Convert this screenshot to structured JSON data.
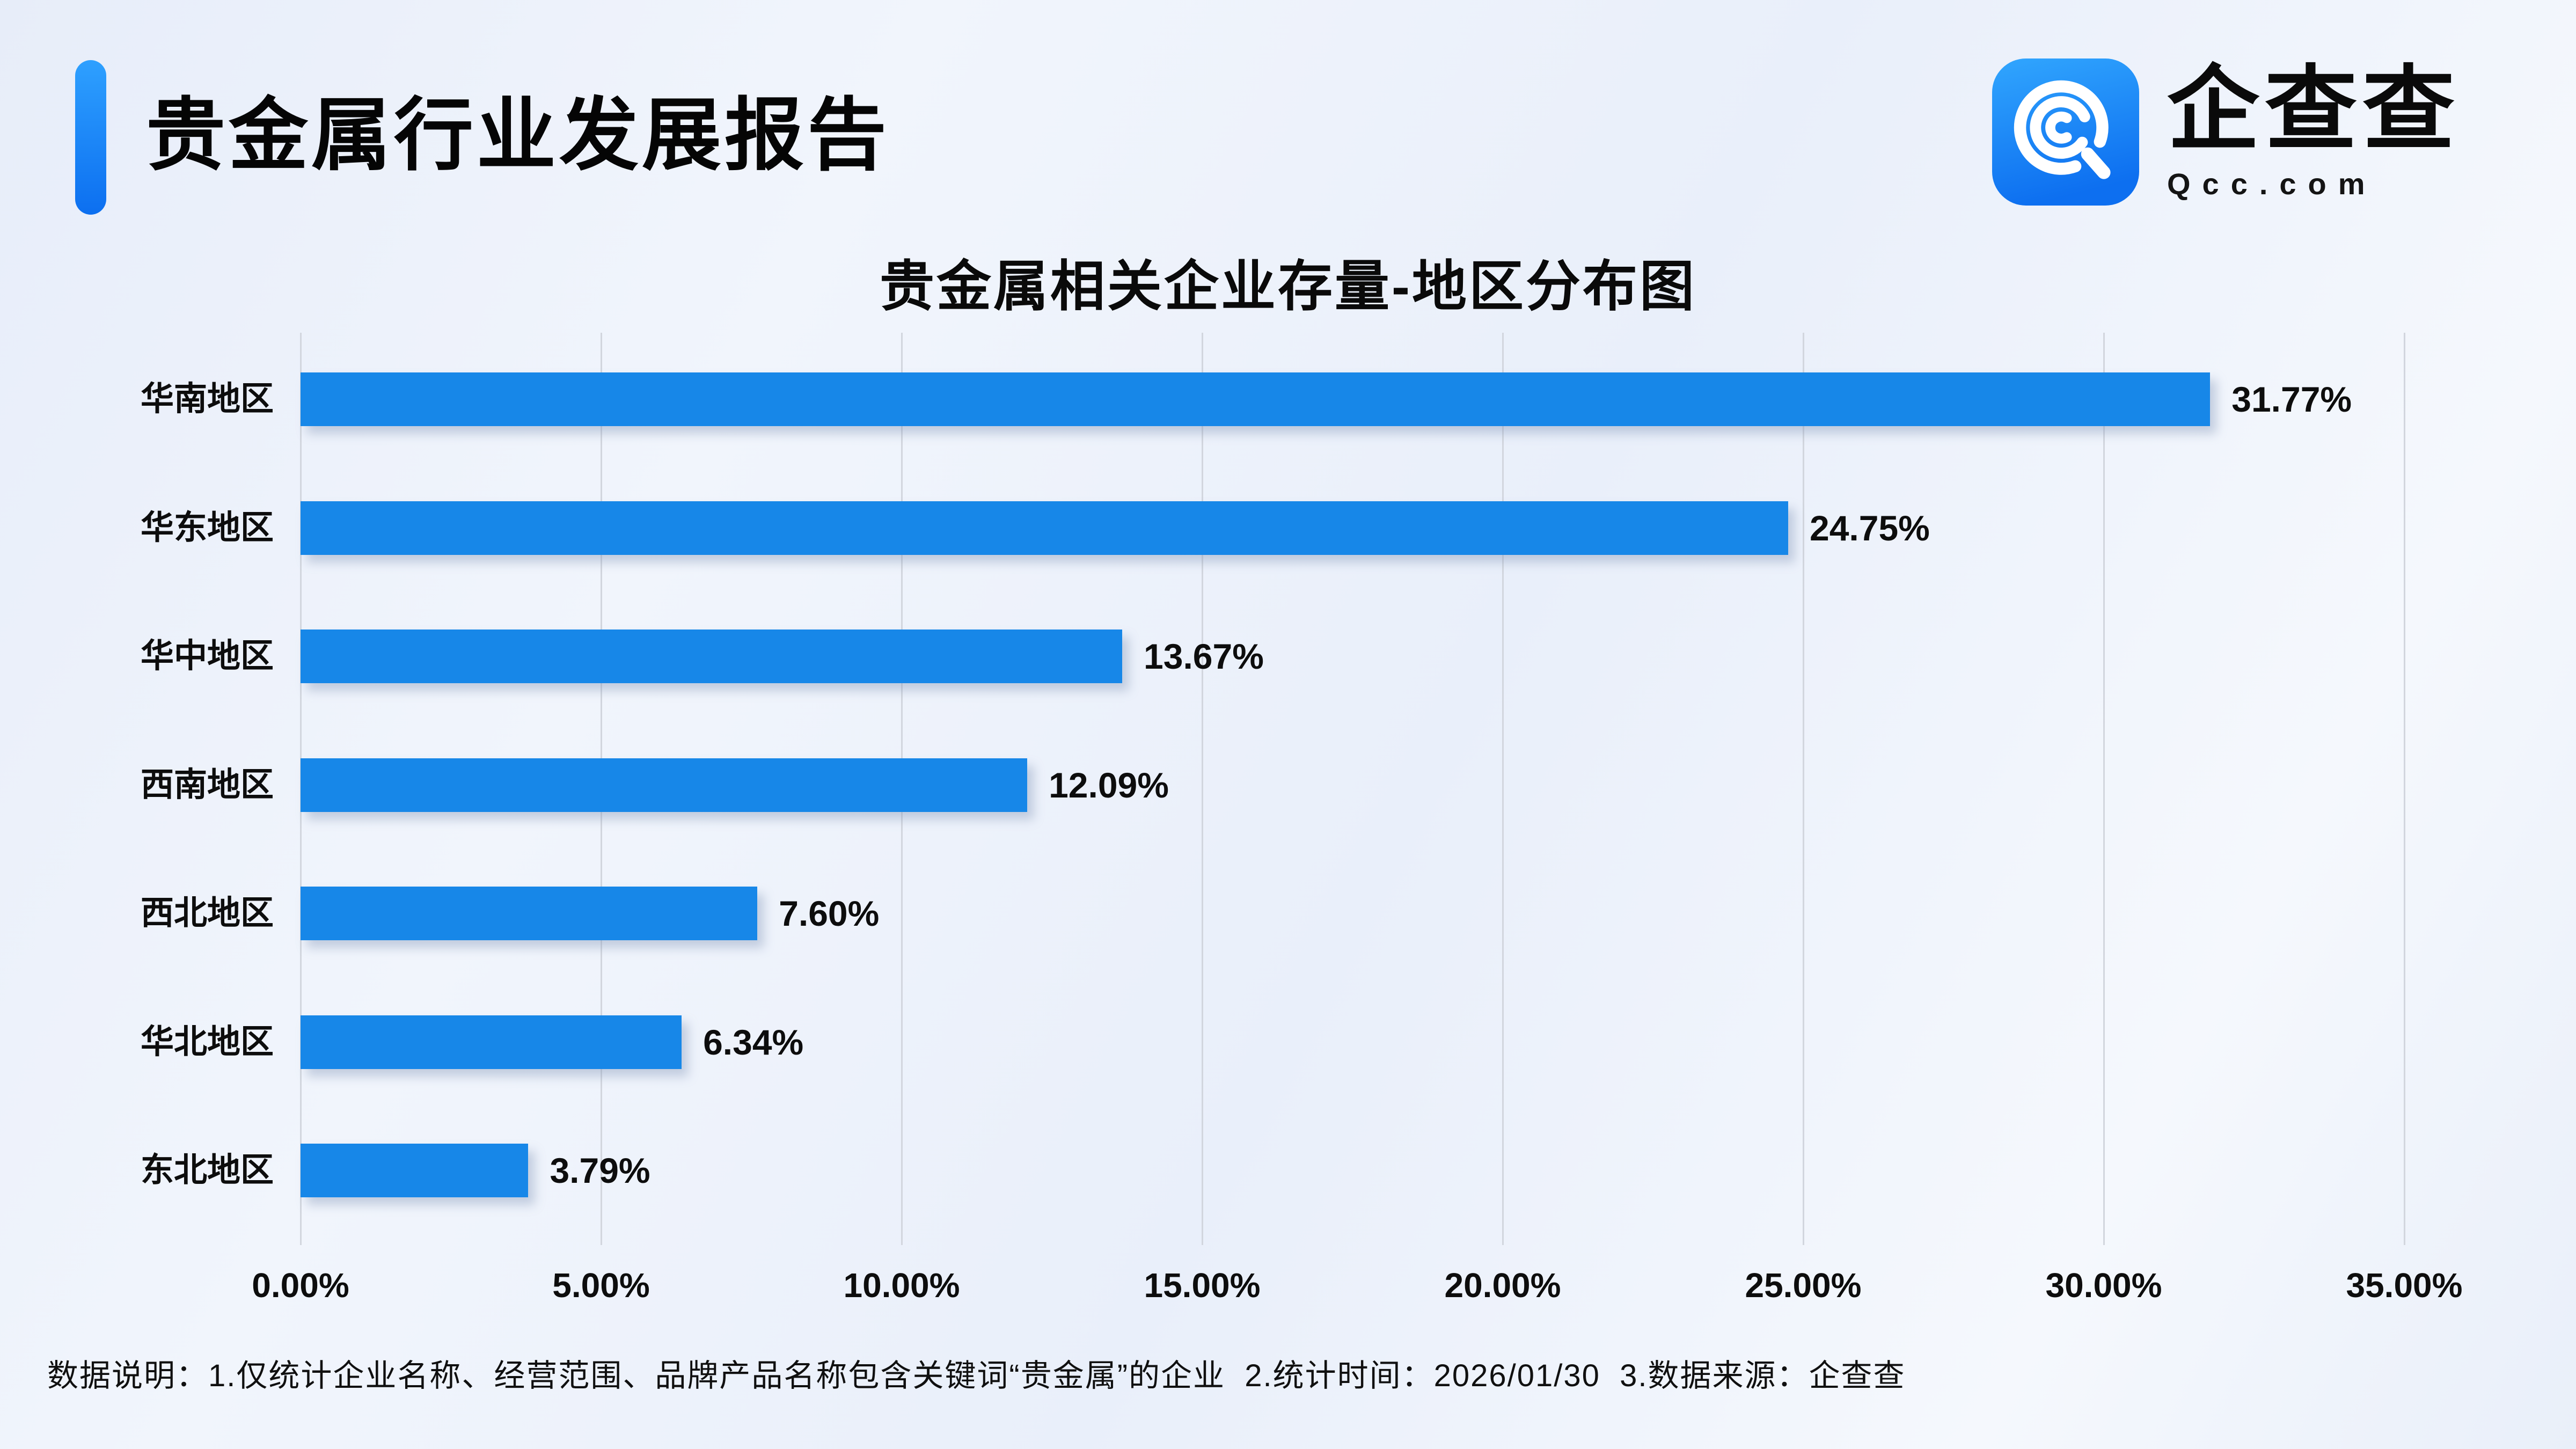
{
  "header": {
    "title": "贵金属行业发展报告"
  },
  "logo": {
    "icon": "qcc-logo",
    "brand": "企查查",
    "domain": "Qcc.com",
    "icon_color_top": "#2fa4fe",
    "icon_color_bottom": "#0d6ff0"
  },
  "chart_data": {
    "type": "bar",
    "orientation": "horizontal",
    "title": "贵金属相关企业存量-地区分布图",
    "categories": [
      "华南地区",
      "华东地区",
      "华中地区",
      "西南地区",
      "西北地区",
      "华北地区",
      "东北地区"
    ],
    "values": [
      31.77,
      24.75,
      13.67,
      12.09,
      7.6,
      6.34,
      3.79
    ],
    "value_labels": [
      "31.77%",
      "24.75%",
      "13.67%",
      "12.09%",
      "7.60%",
      "6.34%",
      "3.79%"
    ],
    "xlabel": "",
    "ylabel": "",
    "xlim": [
      0,
      35
    ],
    "x_ticks": [
      "0.00%",
      "5.00%",
      "10.00%",
      "15.00%",
      "20.00%",
      "25.00%",
      "30.00%",
      "35.00%"
    ],
    "grid": "vertical",
    "legend": "none",
    "bar_color": "#1787e8",
    "grid_color": "#d2d6de"
  },
  "footer": {
    "note": "数据说明：1.仅统计企业名称、经营范围、品牌产品名称包含关键词“贵金属”的企业  2.统计时间：2026/01/30  3.数据来源：企查查"
  }
}
